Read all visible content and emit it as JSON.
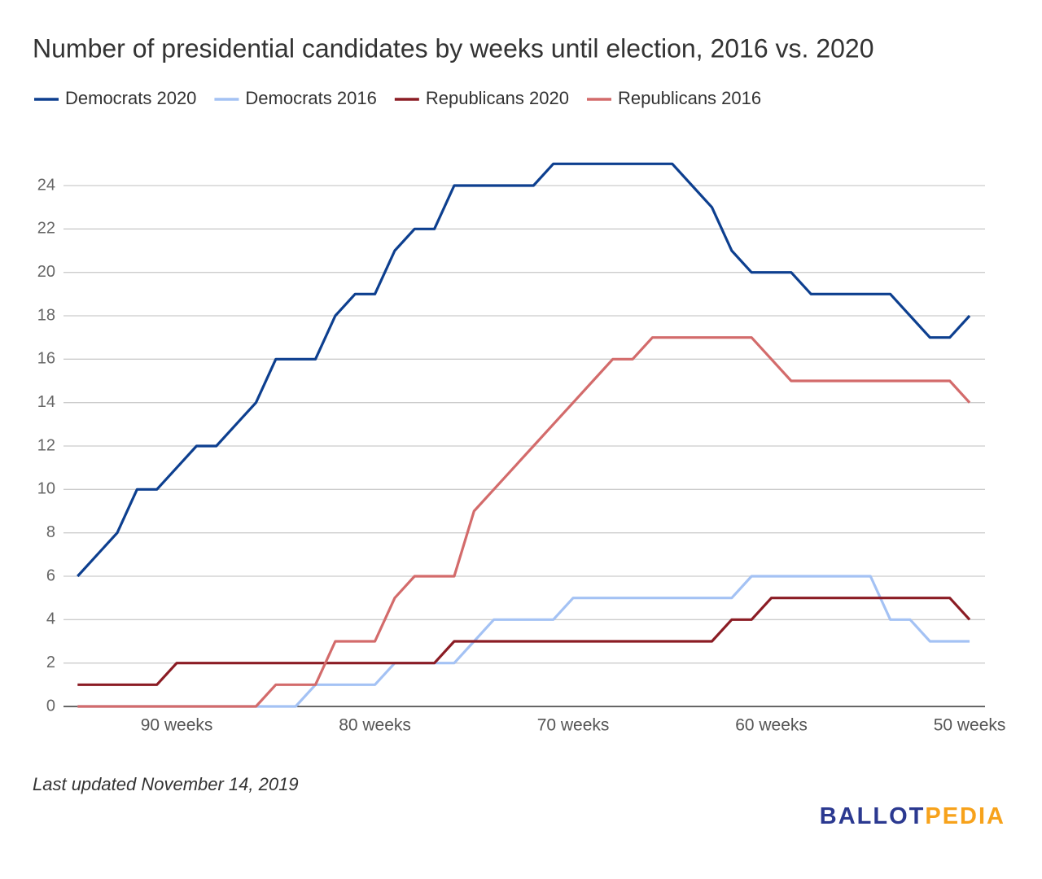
{
  "chart_data": {
    "type": "line",
    "title": "Number of presidential candidates by weeks until election, 2016 vs. 2020",
    "categories": [
      null,
      null,
      null,
      null,
      null,
      "90 weeks",
      null,
      null,
      null,
      null,
      null,
      null,
      null,
      null,
      null,
      "80 weeks",
      null,
      null,
      null,
      null,
      null,
      null,
      null,
      null,
      null,
      "70 weeks",
      null,
      null,
      null,
      null,
      null,
      null,
      null,
      null,
      null,
      "60 weeks",
      null,
      null,
      null,
      null,
      null,
      null,
      null,
      null,
      null,
      "50 weeks"
    ],
    "series": [
      {
        "name": "Democrats 2020",
        "color": "#0d3f8f",
        "values": [
          6,
          7,
          8,
          10,
          10,
          11,
          12,
          12,
          13,
          14,
          16,
          16,
          16,
          18,
          19,
          19,
          21,
          22,
          22,
          24,
          24,
          24,
          24,
          24,
          25,
          25,
          25,
          25,
          25,
          25,
          25,
          24,
          23,
          21,
          20,
          20,
          20,
          19,
          19,
          19,
          19,
          19,
          18,
          17,
          17,
          18
        ]
      },
      {
        "name": "Democrats 2016",
        "color": "#a4c2f4",
        "values": [
          0,
          0,
          0,
          0,
          0,
          0,
          0,
          0,
          0,
          0,
          0,
          0,
          1,
          1,
          1,
          1,
          2,
          2,
          2,
          2,
          3,
          4,
          4,
          4,
          4,
          5,
          5,
          5,
          5,
          5,
          5,
          5,
          5,
          5,
          6,
          6,
          6,
          6,
          6,
          6,
          6,
          4,
          4,
          3,
          3,
          3
        ]
      },
      {
        "name": "Republicans 2020",
        "color": "#8b1c24",
        "values": [
          1,
          1,
          1,
          1,
          1,
          2,
          2,
          2,
          2,
          2,
          2,
          2,
          2,
          2,
          2,
          2,
          2,
          2,
          2,
          3,
          3,
          3,
          3,
          3,
          3,
          3,
          3,
          3,
          3,
          3,
          3,
          3,
          3,
          4,
          4,
          5,
          5,
          5,
          5,
          5,
          5,
          5,
          5,
          5,
          5,
          4
        ]
      },
      {
        "name": "Republicans 2016",
        "color": "#d36b6b",
        "values": [
          0,
          0,
          0,
          0,
          0,
          0,
          0,
          0,
          0,
          0,
          1,
          1,
          1,
          3,
          3,
          3,
          5,
          6,
          6,
          6,
          9,
          10,
          11,
          12,
          13,
          14,
          15,
          16,
          16,
          17,
          17,
          17,
          17,
          17,
          17,
          16,
          15,
          15,
          15,
          15,
          15,
          15,
          15,
          15,
          15,
          14
        ]
      }
    ],
    "ylim": [
      0,
      26
    ],
    "yticks": [
      0,
      2,
      4,
      6,
      8,
      10,
      12,
      14,
      16,
      18,
      20,
      22,
      24
    ],
    "grid": true,
    "legend": "top",
    "footnote": "Last updated November 14, 2019",
    "logo": {
      "first": "BALLOT",
      "second": "PEDIA",
      "first_color": "#2b3990",
      "second_color": "#f7a21b"
    }
  }
}
